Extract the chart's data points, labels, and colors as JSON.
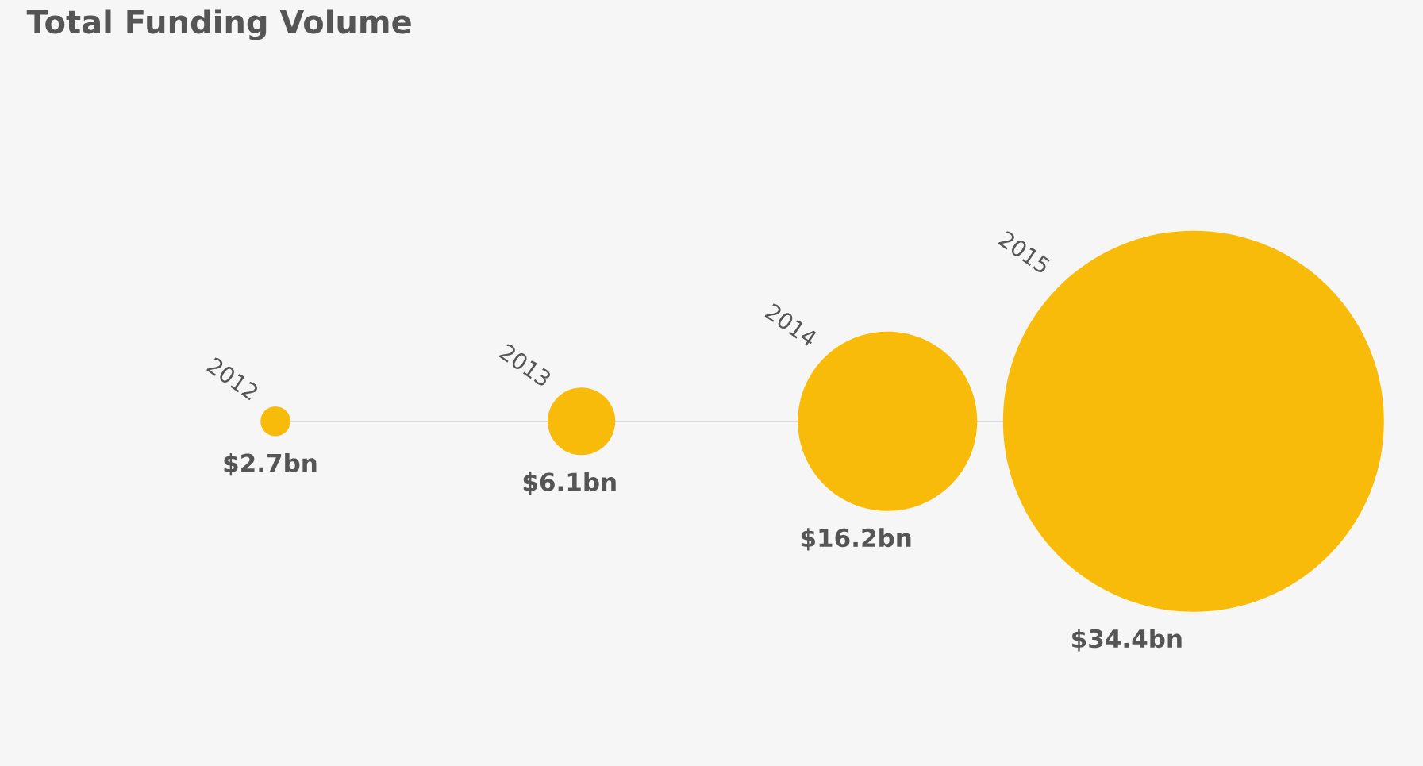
{
  "chart_data": {
    "type": "other",
    "title": "Total Funding Volume",
    "categories": [
      "2012",
      "2013",
      "2014",
      "2015"
    ],
    "values": [
      2.7,
      6.1,
      16.2,
      34.4
    ],
    "value_labels": [
      "$2.7bn",
      "$6.1bn",
      "$16.2bn",
      "$34.4bn"
    ],
    "color": "#f9bb0a"
  }
}
